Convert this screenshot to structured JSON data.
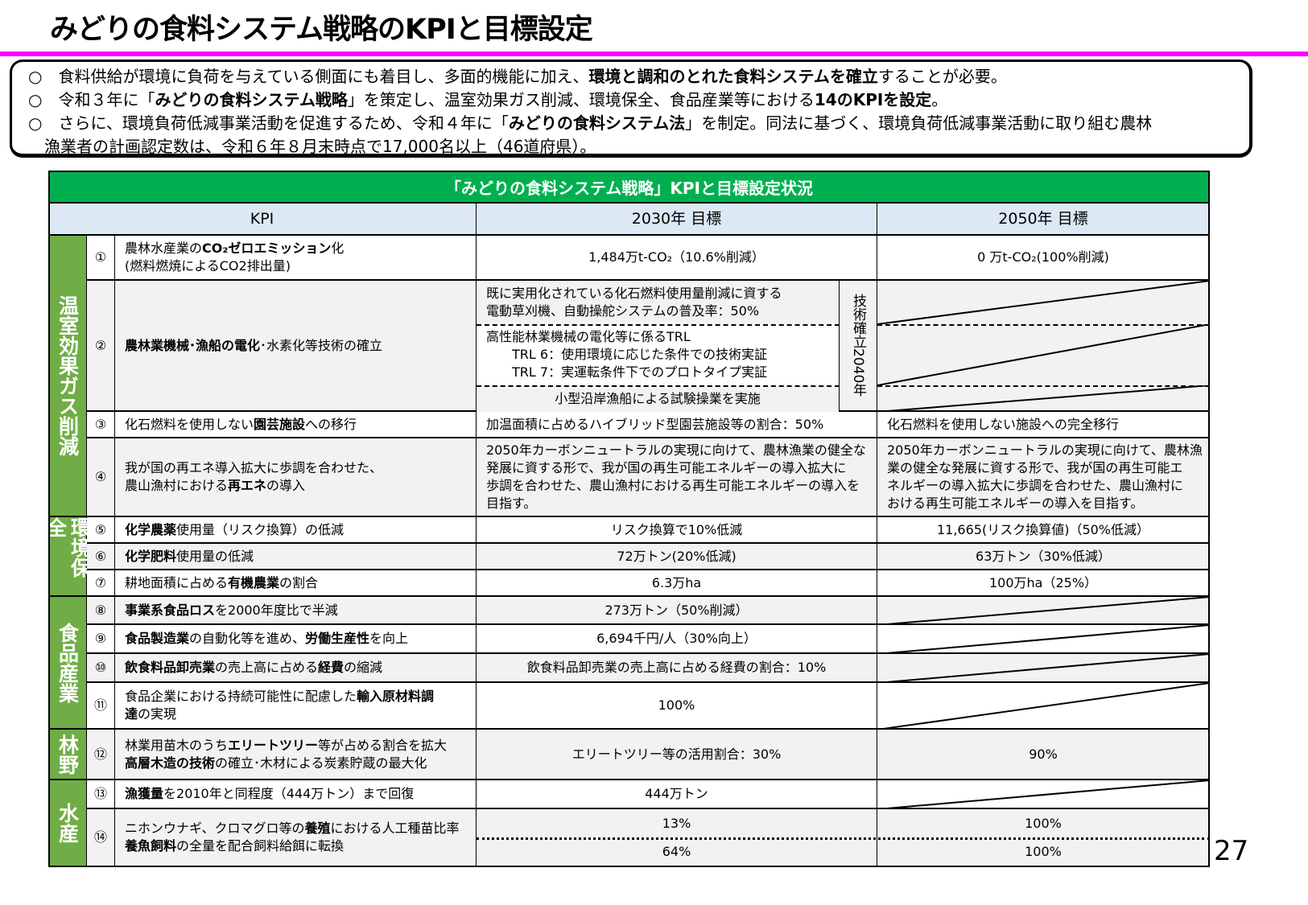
{
  "title": "みどりの食料システム戦略のKPIと目標設定",
  "bullets": [
    [
      {
        "t": "○　食料供給が環境に負荷を与えている側面にも着目し、多面的機能に加え、"
      },
      {
        "t": "環境と調和のとれた食料システムを確立",
        "b": true
      },
      {
        "t": "することが必要。"
      }
    ],
    [
      {
        "t": "○　令和３年に「"
      },
      {
        "t": "みどりの食料システム戦略",
        "b": true
      },
      {
        "t": "」を策定し、温室効果ガス削減、環境保全、食品産業等における"
      },
      {
        "t": "14のKPIを設定",
        "b": true
      },
      {
        "t": "。"
      }
    ],
    [
      {
        "t": "○　さらに、環境負荷低減事業活動を促進するため、令和４年に「"
      },
      {
        "t": "みどりの食料システム法",
        "b": true
      },
      {
        "t": "」を制定。同法に基づく、環境負荷低減事業活動に取り組む農林\n　漁業者の計画認定数は、令和６年８月末時点で17,000名以上（46道府県）。"
      }
    ]
  ],
  "table": {
    "caption": "「みどりの食料システム戦略」KPIと目標設定状況",
    "headers": [
      "KPI",
      "2030年  目標",
      "2050年  目標"
    ],
    "categories": [
      "温室効果ガス削減",
      "環境保全",
      "食品産業",
      "林野",
      "水産"
    ],
    "rows": [
      {
        "num": "①",
        "kpi": [
          {
            "t": "農林水産業の"
          },
          {
            "t": "CO₂ゼロエミッション",
            "b": true
          },
          {
            "t": "化\n(燃料燃焼によるCO2排出量)"
          }
        ],
        "t2030": "1,484万t-CO₂（10.6%削減）",
        "t2050": "0 万t-CO₂(100%削減)"
      },
      {
        "num": "②",
        "kpi": [
          {
            "t": "農林業機械･漁船の電化",
            "b": true
          },
          {
            "t": "･水素化等技術の確立"
          }
        ],
        "t2030_subs": [
          "既に実用化されている化石燃料使用量削減に資する\n電動草刈機、自動操舵システムの普及率：50%",
          "高性能林業機械の電化等に係るTRL\n　　TRL 6：使用環境に応じた条件での技術実証\n　　TRL 7：実運転条件下でのプロトタイプ実証",
          "小型沿岸漁船による試験操業を実施"
        ],
        "side_label": "技術確立",
        "side_year": "2040年"
      },
      {
        "num": "③",
        "kpi": [
          {
            "t": "化石燃料を使用しない"
          },
          {
            "t": "園芸施設",
            "b": true
          },
          {
            "t": "への移行"
          }
        ],
        "t2030": "加温面積に占めるハイブリッド型園芸施設等の割合：50%",
        "t2050": "化石燃料を使用しない施設への完全移行"
      },
      {
        "num": "④",
        "kpi": [
          {
            "t": "我が国の再エネ導入拡大に歩調を合わせた、\n農山漁村における"
          },
          {
            "t": "再エネ",
            "b": true
          },
          {
            "t": "の導入"
          }
        ],
        "t2030": "2050年カーボンニュートラルの実現に向けて、農林漁業の健全な\n発展に資する形で、我が国の再生可能エネルギーの導入拡大に\n歩調を合わせた、農山漁村における再生可能エネルギーの導入を\n目指す。",
        "t2050": "2050年カーボンニュートラルの実現に向けて、農林漁\n業の健全な発展に資する形で、我が国の再生可能エ\nネルギーの導入拡大に歩調を合わせた、農山漁村に\nおける再生可能エネルギーの導入を目指す。"
      },
      {
        "num": "⑤",
        "kpi": [
          {
            "t": "化学農薬",
            "b": true
          },
          {
            "t": "使用量（リスク換算）の低減"
          }
        ],
        "t2030": "リスク換算で10%低減",
        "t2050": "11,665(リスク換算値)（50%低減）"
      },
      {
        "num": "⑥",
        "kpi": [
          {
            "t": "化学肥料",
            "b": true
          },
          {
            "t": "使用量の低減"
          }
        ],
        "t2030": "72万トン(20%低減)",
        "t2050": "63万トン（30%低減）"
      },
      {
        "num": "⑦",
        "kpi": [
          {
            "t": "耕地面積に占める"
          },
          {
            "t": "有機農業",
            "b": true
          },
          {
            "t": "の割合"
          }
        ],
        "t2030": "6.3万ha",
        "t2050": "100万ha（25%）"
      },
      {
        "num": "⑧",
        "kpi": [
          {
            "t": "事業系食品ロス",
            "b": true
          },
          {
            "t": "を2000年度比で半減"
          }
        ],
        "t2030": "273万トン（50%削減）"
      },
      {
        "num": "⑨",
        "kpi": [
          {
            "t": "食品製造業",
            "b": true
          },
          {
            "t": "の自動化等を進め、"
          },
          {
            "t": "労働生産性",
            "b": true
          },
          {
            "t": "を向上"
          }
        ],
        "t2030": "6,694千円/人（30%向上）"
      },
      {
        "num": "⑩",
        "kpi": [
          {
            "t": "飲食料品卸売業",
            "b": true
          },
          {
            "t": "の売上高に占める"
          },
          {
            "t": "経費",
            "b": true
          },
          {
            "t": "の縮減"
          }
        ],
        "t2030": "飲食料品卸売業の売上高に占める経費の割合：10%"
      },
      {
        "num": "⑪",
        "kpi": [
          {
            "t": "食品企業における持続可能性に配慮した"
          },
          {
            "t": "輸入原材料調\n達",
            "b": true
          },
          {
            "t": "の実現"
          }
        ],
        "t2030": "100%"
      },
      {
        "num": "⑫",
        "kpi": [
          {
            "t": "林業用苗木のうち"
          },
          {
            "t": "エリートツリー",
            "b": true
          },
          {
            "t": "等が占める割合を拡大\n"
          },
          {
            "t": "高層木造の技術",
            "b": true
          },
          {
            "t": "の確立･木材による炭素貯蔵の最大化"
          }
        ],
        "t2030": "エリートツリー等の活用割合：30%",
        "t2050": "90%"
      },
      {
        "num": "⑬",
        "kpi": [
          {
            "t": "漁獲量",
            "b": true
          },
          {
            "t": "を2010年と同程度（444万トン）まで回復"
          }
        ],
        "t2030": "444万トン"
      },
      {
        "num": "⑭",
        "kpi": [
          {
            "t": "ニホンウナギ、クロマグロ等の"
          },
          {
            "t": "養殖",
            "b": true
          },
          {
            "t": "における人工種苗比率\n"
          },
          {
            "t": "養魚飼料",
            "b": true
          },
          {
            "t": "の全量を配合飼料給餌に転換"
          }
        ],
        "t2030_subs": [
          "13%",
          "64%"
        ],
        "t2050_subs": [
          "100%",
          "100%"
        ]
      }
    ]
  },
  "page_number": "27",
  "colors": {
    "rule": "#ff00ff",
    "caption_green": "#00b050",
    "category_green": "#70ad47",
    "header_blue": "#dde8f5",
    "row_gray": "#f2f2f2"
  }
}
